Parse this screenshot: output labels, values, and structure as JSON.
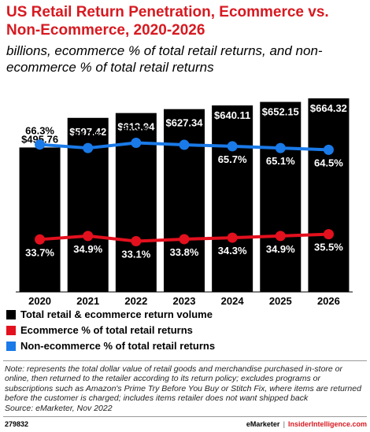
{
  "header": {
    "title": "US Retail Return Penetration, Ecommerce vs. Non-Ecommerce, 2020-2026",
    "subtitle": "billions, ecommerce % of total retail returns, and non-ecommerce % of total retail returns"
  },
  "colors": {
    "bar": "#000000",
    "ecommerce": "#e3101e",
    "non_ecommerce": "#1a7ae8",
    "title": "#d71920"
  },
  "chart_data": {
    "type": "bar",
    "categories": [
      "2020",
      "2021",
      "2022",
      "2023",
      "2024",
      "2025",
      "2026"
    ],
    "series": [
      {
        "name": "Total retail & ecommerce return volume",
        "type": "bar",
        "values": [
          495.76,
          597.42,
          613.94,
          627.34,
          640.11,
          652.15,
          664.32
        ],
        "labels": [
          "$495.76",
          "$597.42",
          "$613.94",
          "$627.34",
          "$640.11",
          "$652.15",
          "$664.32"
        ]
      },
      {
        "name": "Ecommerce % of total retail returns",
        "type": "line",
        "values": [
          33.7,
          34.9,
          33.1,
          33.8,
          34.3,
          34.9,
          35.5
        ],
        "labels": [
          "33.7%",
          "34.9%",
          "33.1%",
          "33.8%",
          "34.3%",
          "34.9%",
          "35.5%"
        ]
      },
      {
        "name": "Non-ecommerce % of total retail returns",
        "type": "line",
        "values": [
          66.3,
          65.1,
          66.9,
          66.2,
          65.7,
          65.1,
          64.5
        ],
        "labels": [
          "66.3%",
          "65.1%",
          "66.9%",
          "66.2%",
          "65.7%",
          "65.1%",
          "64.5%"
        ]
      }
    ],
    "legend": "bottom"
  },
  "note": "Note: represents the total dollar value of retail goods and merchandise purchased in-store or online, then returned to the retailer according to its return policy; excludes programs or subscriptions such as Amazon's Prime Try Before You Buy or Stitch Fix, where items are returned before the customer is charged; includes items retailer does not want shipped back",
  "source": "Source: eMarketer, Nov 2022",
  "footer": {
    "id": "279832",
    "brand": "eMarketer",
    "brand2": "InsiderIntelligence.com"
  }
}
